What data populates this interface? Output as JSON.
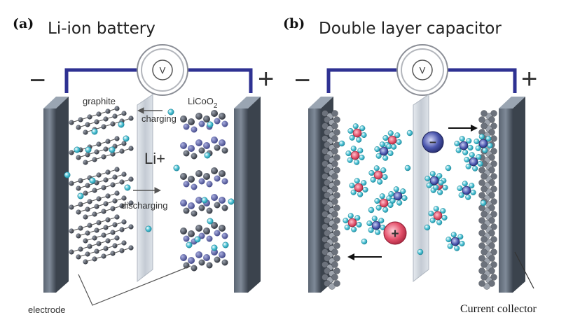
{
  "panels": {
    "a": {
      "letter": "(a)",
      "title": "Li-ion battery",
      "voltmeter": "V",
      "neg_sign": "−",
      "pos_sign": "+",
      "anode_label": "graphite",
      "cathode_label": "LiCoO",
      "cathode_sub": "2",
      "ion_label": "Li+",
      "charging_label": "charging",
      "discharging_label": "discharging",
      "electrode_label": "electrode"
    },
    "b": {
      "letter": "(b)",
      "title": "Double layer capacitor",
      "voltmeter": "V",
      "neg_sign": "−",
      "pos_sign": "+",
      "anion_sign": "−",
      "cation_sign": "+",
      "collector_label": "Current collector"
    }
  },
  "colors": {
    "wire": "#2e3192",
    "electrode_dark": "#4a5360",
    "electrode_light": "#8a97a5",
    "separator": "#c8ced6",
    "ion": "#4fc3d6",
    "graphite_atom": "#3f4450",
    "cobalt_atom": "#5a5f9a",
    "cation": "#e0506a",
    "anion": "#3d4a9c"
  }
}
